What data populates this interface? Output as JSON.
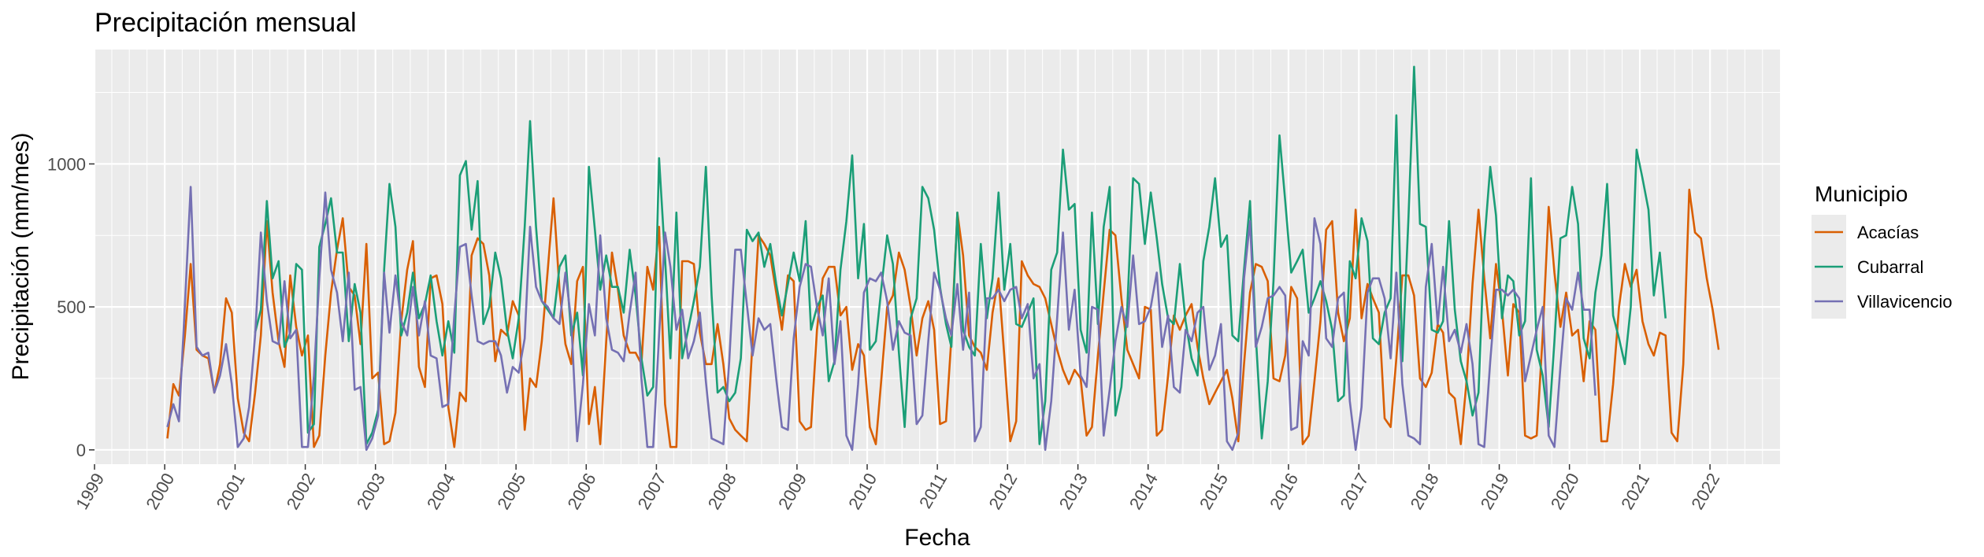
{
  "chart_data": {
    "type": "line",
    "title": "Precipitación mensual",
    "xlabel": "Fecha",
    "ylabel": "Precipitación (mm/mes)",
    "xlim": [
      "1999-01-01",
      "2022-12-31"
    ],
    "ylim": [
      -50,
      1400
    ],
    "x_ticks": [
      "1999",
      "2000",
      "2001",
      "2002",
      "2003",
      "2004",
      "2005",
      "2006",
      "2007",
      "2008",
      "2009",
      "2010",
      "2011",
      "2012",
      "2013",
      "2014",
      "2015",
      "2016",
      "2017",
      "2018",
      "2019",
      "2020",
      "2021",
      "2022"
    ],
    "y_ticks": [
      0,
      500,
      1000
    ],
    "y_tick_labels": [
      "0",
      "500",
      "1000"
    ],
    "grid": true,
    "legend": {
      "title": "Municipio",
      "position": "right"
    },
    "x_start": "2000-01",
    "series": [
      {
        "name": "Acacías",
        "color": "#D95F02",
        "start": "2000-01",
        "values": [
          40,
          230,
          190,
          400,
          650,
          350,
          330,
          320,
          200,
          300,
          530,
          480,
          180,
          60,
          30,
          200,
          400,
          800,
          550,
          380,
          290,
          610,
          430,
          330,
          400,
          10,
          50,
          330,
          550,
          700,
          810,
          570,
          540,
          370,
          720,
          250,
          270,
          20,
          30,
          130,
          450,
          630,
          730,
          290,
          220,
          600,
          610,
          510,
          150,
          10,
          200,
          170,
          680,
          740,
          720,
          610,
          310,
          420,
          400,
          520,
          470,
          70,
          250,
          220,
          380,
          630,
          880,
          560,
          370,
          300,
          590,
          640,
          90,
          220,
          20,
          380,
          690,
          560,
          400,
          340,
          340,
          300,
          640,
          560,
          780,
          160,
          10,
          10,
          660,
          660,
          650,
          410,
          300,
          300,
          440,
          300,
          110,
          70,
          50,
          30,
          380,
          750,
          720,
          680,
          550,
          420,
          610,
          590,
          100,
          70,
          80,
          420,
          600,
          640,
          640,
          470,
          500,
          280,
          370,
          330,
          80,
          20,
          240,
          500,
          540,
          690,
          630,
          500,
          330,
          460,
          520,
          420,
          90,
          100,
          390,
          830,
          680,
          400,
          360,
          340,
          280,
          480,
          600,
          330,
          30,
          100,
          660,
          610,
          580,
          570,
          530,
          440,
          350,
          280,
          230,
          280,
          250,
          50,
          80,
          330,
          550,
          770,
          750,
          530,
          350,
          300,
          250,
          500,
          490,
          50,
          70,
          260,
          470,
          420,
          470,
          510,
          360,
          250,
          160,
          200,
          240,
          280,
          180,
          30,
          300,
          550,
          650,
          640,
          590,
          250,
          240,
          330,
          570,
          530,
          20,
          50,
          240,
          450,
          770,
          800,
          480,
          380,
          460,
          840,
          460,
          580,
          530,
          480,
          110,
          80,
          320,
          610,
          610,
          540,
          250,
          220,
          270,
          440,
          410,
          200,
          180,
          20,
          240,
          580,
          840,
          600,
          390,
          650,
          490,
          260,
          510,
          480,
          50,
          40,
          50,
          400,
          850,
          620,
          430,
          550,
          400,
          420,
          240,
          450,
          420,
          30,
          30,
          230,
          500,
          650,
          570,
          630,
          450,
          370,
          330,
          410,
          400,
          60,
          30,
          300,
          910,
          760,
          740,
          600,
          490,
          350
        ]
      },
      {
        "name": "Cubarral",
        "color": "#1B9E77",
        "start": "2001-04",
        "values": [
          410,
          490,
          870,
          600,
          660,
          360,
          410,
          650,
          630,
          60,
          90,
          710,
          790,
          880,
          690,
          690,
          380,
          580,
          480,
          20,
          60,
          140,
          630,
          930,
          780,
          400,
          480,
          620,
          460,
          510,
          610,
          450,
          330,
          450,
          340,
          960,
          1010,
          770,
          940,
          440,
          500,
          690,
          600,
          420,
          320,
          460,
          780,
          1150,
          780,
          520,
          490,
          460,
          640,
          680,
          400,
          480,
          260,
          990,
          770,
          560,
          680,
          570,
          570,
          480,
          700,
          540,
          320,
          190,
          220,
          1020,
          670,
          320,
          830,
          320,
          420,
          520,
          640,
          990,
          540,
          200,
          220,
          170,
          200,
          320,
          770,
          730,
          760,
          640,
          720,
          580,
          470,
          580,
          690,
          590,
          800,
          420,
          500,
          540,
          240,
          310,
          630,
          800,
          1030,
          600,
          790,
          350,
          380,
          560,
          750,
          650,
          340,
          80,
          460,
          530,
          920,
          880,
          770,
          570,
          440,
          360,
          830,
          420,
          360,
          330,
          720,
          460,
          600,
          900,
          560,
          720,
          440,
          430,
          480,
          530,
          20,
          170,
          630,
          690,
          1050,
          840,
          860,
          420,
          340,
          830,
          440,
          780,
          920,
          120,
          220,
          500,
          950,
          930,
          720,
          900,
          740,
          580,
          460,
          440,
          650,
          450,
          320,
          260,
          660,
          780,
          950,
          710,
          750,
          400,
          380,
          630,
          870,
          400,
          40,
          240,
          590,
          1100,
          870,
          620,
          660,
          700,
          480,
          530,
          590,
          520,
          420,
          170,
          190,
          660,
          600,
          810,
          730,
          390,
          370,
          480,
          530,
          1170,
          310,
          800,
          1340,
          790,
          780,
          420,
          410,
          450,
          800,
          490,
          310,
          240,
          120,
          200,
          720,
          990,
          820,
          460,
          610,
          590,
          400,
          450,
          950,
          350,
          260,
          80,
          380,
          740,
          750,
          920,
          790,
          390,
          320,
          550,
          680,
          930,
          470,
          390,
          300,
          500,
          1050,
          950,
          840,
          540,
          690,
          460
        ]
      },
      {
        "name": "Villavicencio",
        "color": "#7570B3",
        "start": "2000-01",
        "values": [
          80,
          160,
          100,
          510,
          920,
          360,
          330,
          340,
          200,
          260,
          370,
          230,
          10,
          40,
          150,
          400,
          760,
          520,
          380,
          370,
          590,
          390,
          420,
          10,
          10,
          260,
          600,
          900,
          630,
          550,
          380,
          620,
          210,
          220,
          0,
          40,
          120,
          620,
          410,
          610,
          450,
          400,
          570,
          400,
          520,
          330,
          320,
          150,
          160,
          470,
          710,
          720,
          540,
          380,
          370,
          380,
          380,
          330,
          200,
          290,
          270,
          390,
          780,
          570,
          520,
          500,
          460,
          440,
          620,
          450,
          30,
          230,
          510,
          400,
          750,
          460,
          350,
          340,
          310,
          480,
          620,
          250,
          10,
          10,
          400,
          760,
          640,
          420,
          490,
          320,
          380,
          480,
          240,
          40,
          30,
          20,
          310,
          700,
          700,
          510,
          330,
          460,
          420,
          440,
          250,
          80,
          70,
          390,
          570,
          650,
          640,
          500,
          400,
          600,
          300,
          450,
          50,
          0,
          230,
          550,
          600,
          590,
          620,
          520,
          350,
          450,
          410,
          400,
          90,
          120,
          380,
          620,
          560,
          460,
          400,
          580,
          350,
          550,
          30,
          80,
          530,
          530,
          560,
          520,
          560,
          570,
          460,
          510,
          250,
          300,
          0,
          170,
          460,
          760,
          420,
          560,
          260,
          220,
          500,
          490,
          50,
          210,
          380,
          500,
          430,
          680,
          440,
          450,
          500,
          620,
          360,
          470,
          220,
          200,
          420,
          380,
          480,
          500,
          280,
          330,
          440,
          30,
          0,
          60,
          600,
          800,
          360,
          430,
          530,
          540,
          570,
          540,
          70,
          80,
          380,
          330,
          810,
          720,
          390,
          360,
          530,
          550,
          170,
          0,
          150,
          550,
          600,
          600,
          530,
          320,
          620,
          230,
          50,
          40,
          20,
          570,
          720,
          440,
          640,
          380,
          420,
          340,
          440,
          300,
          20,
          10,
          310,
          560,
          560,
          540,
          560,
          530,
          240,
          330,
          420,
          500,
          50,
          10,
          290,
          530,
          490,
          620,
          490,
          490,
          190
        ]
      }
    ]
  }
}
